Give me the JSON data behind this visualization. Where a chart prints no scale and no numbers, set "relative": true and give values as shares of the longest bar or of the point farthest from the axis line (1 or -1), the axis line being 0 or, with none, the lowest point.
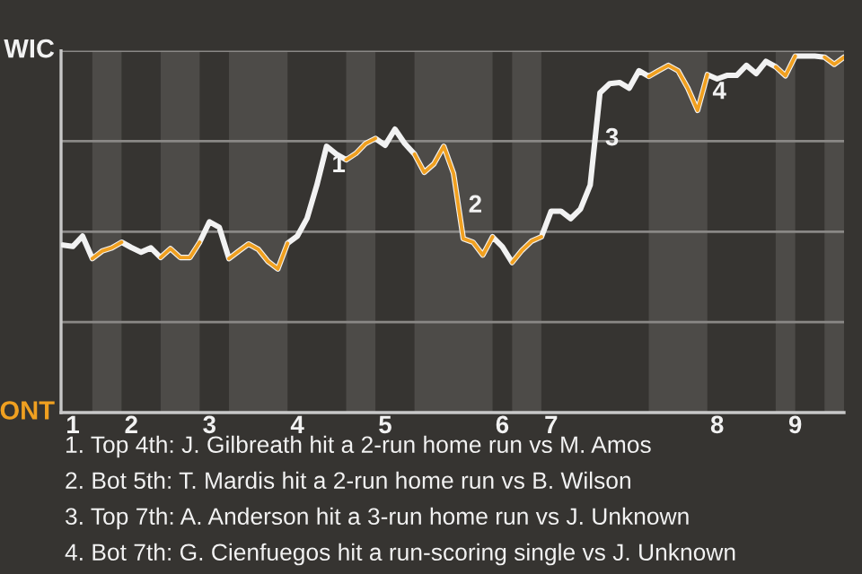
{
  "chart_data": {
    "type": "line",
    "relative": true,
    "categories": [
      null,
      "1",
      null,
      null,
      null,
      null,
      null,
      "2",
      null,
      null,
      null,
      null,
      null,
      null,
      null,
      "3",
      null,
      null,
      null,
      null,
      null,
      null,
      null,
      null,
      "4",
      null,
      null,
      null,
      null,
      null,
      null,
      null,
      null,
      "5",
      null,
      null,
      null,
      null,
      null,
      null,
      null,
      null,
      null,
      null,
      null,
      "6",
      null,
      null,
      null,
      null,
      "7",
      null,
      null,
      null,
      null,
      null,
      null,
      null,
      null,
      null,
      null,
      null,
      null,
      null,
      null,
      null,
      null,
      "8",
      null,
      null,
      null,
      null,
      null,
      null,
      null,
      "9",
      null,
      null,
      null,
      null,
      null
    ],
    "series": [
      {
        "name": "WIC",
        "color": "#f2f2f2",
        "values": [
          0.47,
          0.466,
          0.495,
          0.432,
          0.453,
          0.462,
          0.478,
          0.463,
          0.45,
          0.462,
          0.435,
          0.46,
          0.435,
          0.435,
          0.478,
          0.535,
          0.52,
          0.432,
          0.453,
          0.473,
          0.458,
          0.424,
          0.403,
          0.475,
          0.495,
          0.545,
          0.638,
          0.747,
          0.725,
          0.709,
          0.727,
          0.755,
          0.769,
          0.75,
          0.795,
          0.755,
          0.725,
          0.674,
          0.698,
          0.747,
          0.671,
          0.488,
          0.478,
          0.442,
          0.493,
          0.465,
          0.421,
          0.455,
          0.481,
          0.493,
          0.565,
          0.565,
          0.544,
          0.571,
          0.638,
          0.897,
          0.923,
          0.926,
          0.91,
          0.959,
          0.943,
          0.959,
          0.974,
          0.959,
          0.91,
          0.848,
          0.948,
          0.936,
          0.946,
          0.946,
          0.974,
          0.951,
          0.985,
          0.97,
          0.945,
          1,
          1,
          1,
          0.997,
          0.977,
          0.997
        ]
      },
      {
        "name": "ONT",
        "color": "#f0a020",
        "values": [
          null,
          null,
          null,
          0.432,
          0.453,
          0.462,
          0.478,
          null,
          null,
          null,
          0.435,
          0.46,
          0.435,
          0.435,
          0.478,
          null,
          null,
          0.432,
          0.453,
          0.473,
          0.458,
          0.424,
          0.403,
          0.475,
          null,
          null,
          null,
          null,
          null,
          0.709,
          0.727,
          0.755,
          0.769,
          null,
          null,
          null,
          0.725,
          0.674,
          0.698,
          0.747,
          0.671,
          0.488,
          0.478,
          0.442,
          0.493,
          null,
          0.421,
          0.455,
          0.481,
          0.493,
          null,
          null,
          null,
          null,
          null,
          null,
          null,
          null,
          null,
          null,
          0.943,
          0.959,
          0.974,
          0.959,
          0.91,
          0.848,
          0.948,
          null,
          null,
          null,
          null,
          null,
          null,
          0.97,
          0.945,
          1,
          null,
          null,
          0.997,
          0.977,
          0.997
        ]
      }
    ],
    "grid": "y",
    "marker": "none",
    "line_style": "solid",
    "annotations": [
      "1",
      "2",
      "3",
      "4",
      "1. Top 4th: J. Gilbreath hit a 2-run home run vs M. Amos",
      "2. Bot 5th: T. Mardis hit a 2-run home run vs B. Wilson",
      "3. Top 7th: A. Anderson hit a 3-run home run vs J. Unknown",
      "4. Bot 7th: G. Cienfuegos hit a run-scoring single vs J. Unknown"
    ]
  }
}
